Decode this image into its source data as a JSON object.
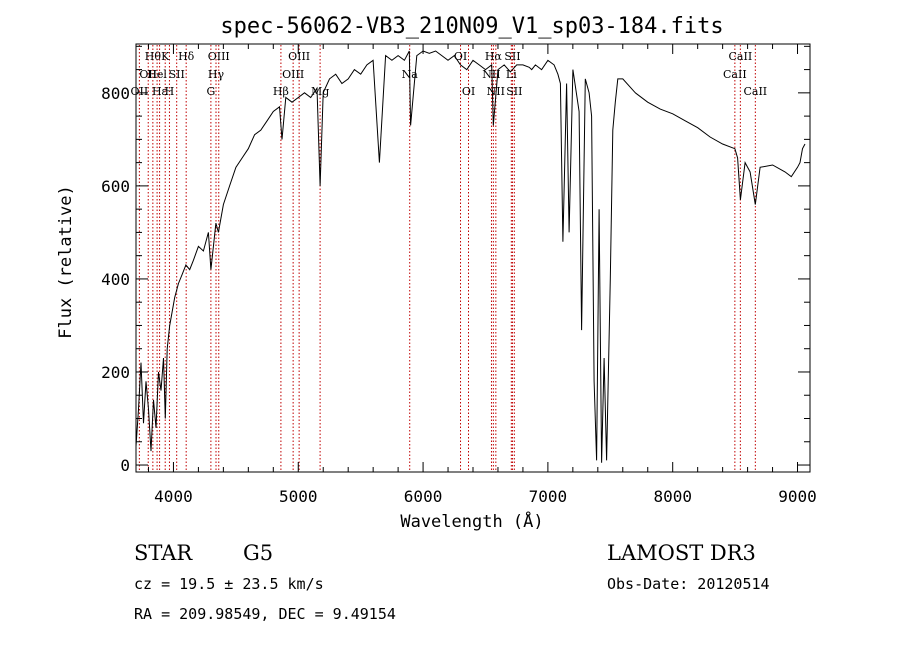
{
  "chart_data": {
    "type": "line",
    "title": "spec-56062-VB3_210N09_V1_sp03-184.fits",
    "xlabel": "Wavelength (Å)",
    "ylabel": "Flux (relative)",
    "xlim": [
      3700,
      9100
    ],
    "ylim": [
      -15,
      905
    ],
    "xticks": [
      4000,
      5000,
      6000,
      7000,
      8000,
      9000
    ],
    "yticks": [
      0,
      200,
      400,
      600,
      800
    ],
    "series": [
      {
        "name": "spectrum",
        "x": [
          3700,
          3720,
          3740,
          3760,
          3780,
          3800,
          3820,
          3840,
          3860,
          3880,
          3900,
          3920,
          3935,
          3950,
          3970,
          3990,
          4010,
          4040,
          4070,
          4100,
          4130,
          4160,
          4200,
          4240,
          4280,
          4300,
          4320,
          4340,
          4360,
          4400,
          4450,
          4500,
          4550,
          4600,
          4650,
          4700,
          4750,
          4800,
          4850,
          4870,
          4900,
          4950,
          5000,
          5050,
          5100,
          5150,
          5175,
          5200,
          5250,
          5300,
          5350,
          5400,
          5450,
          5500,
          5550,
          5600,
          5650,
          5700,
          5750,
          5800,
          5850,
          5890,
          5900,
          5950,
          6000,
          6050,
          6100,
          6150,
          6200,
          6250,
          6300,
          6350,
          6400,
          6450,
          6500,
          6550,
          6563,
          6600,
          6650,
          6700,
          6750,
          6800,
          6850,
          6870,
          6900,
          6950,
          7000,
          7050,
          7080,
          7100,
          7120,
          7150,
          7170,
          7200,
          7250,
          7270,
          7300,
          7330,
          7350,
          7370,
          7390,
          7410,
          7430,
          7450,
          7470,
          7500,
          7520,
          7540,
          7560,
          7600,
          7700,
          7800,
          7900,
          8000,
          8100,
          8200,
          8300,
          8400,
          8498,
          8520,
          8542,
          8580,
          8620,
          8662,
          8700,
          8800,
          8900,
          8950,
          9000,
          9020,
          9040,
          9060
        ],
        "y": [
          40,
          120,
          220,
          90,
          180,
          120,
          30,
          140,
          80,
          200,
          160,
          230,
          100,
          250,
          300,
          330,
          360,
          390,
          410,
          430,
          420,
          440,
          470,
          460,
          500,
          420,
          470,
          520,
          500,
          560,
          600,
          640,
          660,
          680,
          710,
          720,
          740,
          760,
          770,
          700,
          790,
          780,
          790,
          800,
          790,
          810,
          600,
          800,
          830,
          840,
          820,
          830,
          850,
          840,
          860,
          870,
          650,
          880,
          870,
          880,
          870,
          890,
          730,
          880,
          890,
          885,
          890,
          880,
          870,
          880,
          860,
          850,
          870,
          860,
          850,
          860,
          730,
          850,
          860,
          845,
          860,
          860,
          855,
          850,
          860,
          850,
          870,
          860,
          840,
          820,
          480,
          820,
          500,
          850,
          760,
          290,
          830,
          800,
          750,
          180,
          10,
          550,
          5,
          230,
          10,
          400,
          720,
          780,
          830,
          830,
          800,
          780,
          765,
          755,
          740,
          725,
          705,
          690,
          680,
          660,
          570,
          650,
          630,
          560,
          640,
          645,
          630,
          620,
          640,
          650,
          680,
          690
        ],
        "color": "#000000"
      }
    ],
    "line_markers": [
      {
        "wavelength": 3727,
        "label": "OII",
        "row": 2
      },
      {
        "wavelength": 3798,
        "label": "OII",
        "row": 1
      },
      {
        "wavelength": 3835,
        "label": "Hθ",
        "row": 0
      },
      {
        "wavelength": 3869,
        "label": "Hel",
        "row": 1
      },
      {
        "wavelength": 3889,
        "label": "Hε",
        "row": 2
      },
      {
        "wavelength": 3934,
        "label": "K",
        "row": 0
      },
      {
        "wavelength": 3968,
        "label": "H",
        "row": 2
      },
      {
        "wavelength": 4026,
        "label": "SII",
        "row": 1
      },
      {
        "wavelength": 4102,
        "label": "Hδ",
        "row": 0
      },
      {
        "wavelength": 4300,
        "label": "G",
        "row": 2
      },
      {
        "wavelength": 4341,
        "label": "Hγ",
        "row": 1
      },
      {
        "wavelength": 4363,
        "label": "OIII",
        "row": 0
      },
      {
        "wavelength": 4861,
        "label": "Hβ",
        "row": 2
      },
      {
        "wavelength": 4959,
        "label": "OIII",
        "row": 1
      },
      {
        "wavelength": 5007,
        "label": "OIII",
        "row": 0
      },
      {
        "wavelength": 5175,
        "label": "Mg",
        "row": 2
      },
      {
        "wavelength": 5893,
        "label": "Na",
        "row": 1
      },
      {
        "wavelength": 6300,
        "label": "OI",
        "row": 0
      },
      {
        "wavelength": 6364,
        "label": "OI",
        "row": 2
      },
      {
        "wavelength": 6548,
        "label": "NII",
        "row": 1
      },
      {
        "wavelength": 6563,
        "label": "Hα",
        "row": 0
      },
      {
        "wavelength": 6583,
        "label": "NII",
        "row": 2
      },
      {
        "wavelength": 6707,
        "label": "Li",
        "row": 1
      },
      {
        "wavelength": 6716,
        "label": "SII",
        "row": 0
      },
      {
        "wavelength": 6731,
        "label": "SII",
        "row": 2
      },
      {
        "wavelength": 8498,
        "label": "CaII",
        "row": 1
      },
      {
        "wavelength": 8542,
        "label": "CaII",
        "row": 0
      },
      {
        "wavelength": 8662,
        "label": "CaII",
        "row": 2
      }
    ],
    "marker_color": "#c00000"
  },
  "info": {
    "class": "STAR",
    "subclass": "G5",
    "survey": "LAMOST DR3",
    "cz": "cz = 19.5 ± 23.5 km/s",
    "obs_date": "Obs-Date: 20120514",
    "coords": "RA = 209.98549, DEC =   9.49154"
  }
}
